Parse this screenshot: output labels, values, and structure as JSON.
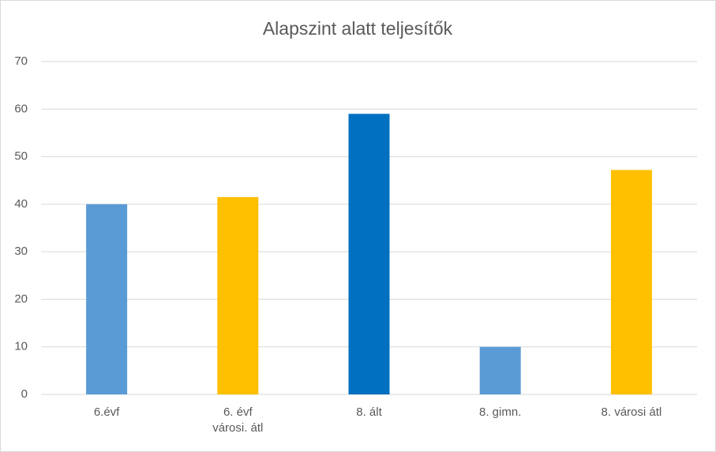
{
  "chart_data": {
    "type": "bar",
    "title": "Alapszint alatt teljesítők",
    "categories": [
      "6.évf",
      "6. évf városi. átl",
      "8. ált",
      "8. gimn.",
      "8. városi átl"
    ],
    "values": [
      40,
      41.5,
      59,
      10,
      47.2
    ],
    "colors": [
      "#5b9bd5",
      "#ffc000",
      "#0070c0",
      "#5b9bd5",
      "#ffc000"
    ],
    "ylim": [
      0,
      70
    ],
    "yticks": [
      0,
      10,
      20,
      30,
      40,
      50,
      60,
      70
    ],
    "grid": true
  }
}
